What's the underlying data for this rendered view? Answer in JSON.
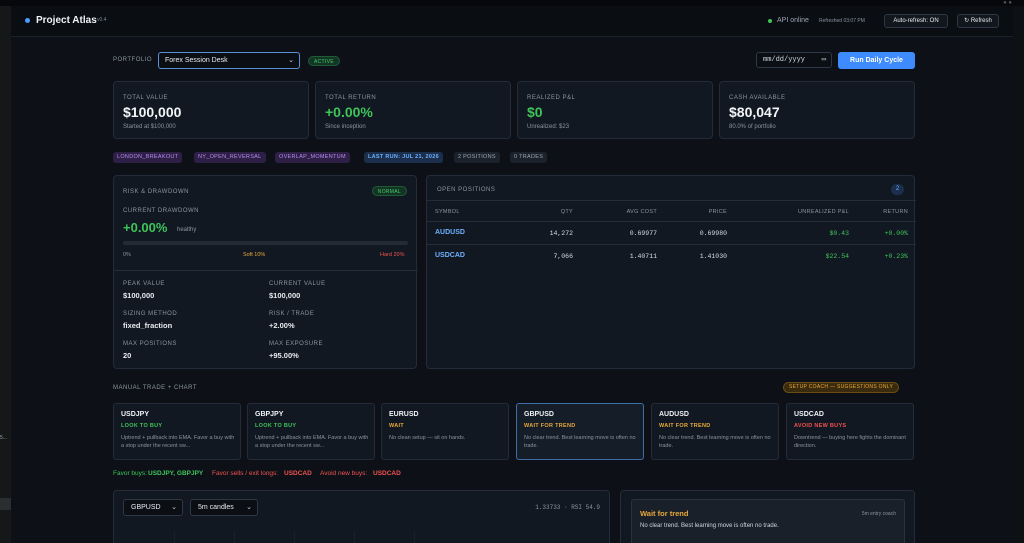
{
  "header": {
    "brand": "Project Atlas",
    "version": "v0.4",
    "api_status": "API online",
    "refreshed": "Refreshed 03:07 PM",
    "auto_refresh": "Auto-refresh: ON",
    "refresh": "↻ Refresh"
  },
  "portfolio": {
    "label": "Portfolio",
    "selected": "Forex Session Desk",
    "status": "Active",
    "date_placeholder": "mm/dd/yyyy",
    "run_button": "Run Daily Cycle"
  },
  "kpis": [
    {
      "label": "Total Value",
      "value": "$100,000",
      "sub": "Started at $100,000",
      "color": "#f2f5f8"
    },
    {
      "label": "Total Return",
      "value": "+0.00%",
      "sub": "Since inception",
      "color": "#3ec45a"
    },
    {
      "label": "Realized P&L",
      "value": "$0",
      "sub": "Unrealized: $23",
      "color": "#3ec45a"
    },
    {
      "label": "Cash Available",
      "value": "$80,047",
      "sub": "80.0% of portfolio",
      "color": "#f2f5f8"
    }
  ],
  "tags": [
    {
      "text": "LONDON_BREAKOUT",
      "kind": "purple"
    },
    {
      "text": "NY_OPEN_REVERSAL",
      "kind": "purple"
    },
    {
      "text": "OVERLAP_MOMENTUM",
      "kind": "purple"
    },
    {
      "text": "Last run: Jul 21, 2026",
      "kind": "blue"
    },
    {
      "text": "2 positions",
      "kind": "gray"
    },
    {
      "text": "0 trades",
      "kind": "gray"
    }
  ],
  "risk": {
    "title": "Risk & Drawdown",
    "status": "Normal",
    "drawdown_label": "Current Drawdown",
    "drawdown_value": "+0.00%",
    "drawdown_state": "healthy",
    "drawdown_fraction": 0.0,
    "mark_zero": "0%",
    "mark_soft": "Soft 10%",
    "mark_hard": "Hard 20%",
    "stats": [
      {
        "label": "Peak Value",
        "value": "$100,000"
      },
      {
        "label": "Current Value",
        "value": "$100,000"
      },
      {
        "label": "Sizing Method",
        "value": "fixed_fraction"
      },
      {
        "label": "Risk / Trade",
        "value": "+2.00%"
      },
      {
        "label": "Max Positions",
        "value": "20"
      },
      {
        "label": "Max Exposure",
        "value": "+95.00%"
      }
    ]
  },
  "positions": {
    "title": "Open Positions",
    "count": "2",
    "columns": [
      "Symbol",
      "Qty",
      "Avg Cost",
      "Price",
      "Unrealized P&L",
      "Return"
    ],
    "rows": [
      {
        "symbol": "AUDUSD",
        "qty": "14,272",
        "avg_cost": "0.69977",
        "price": "0.69980",
        "pnl": "$0.43",
        "ret": "+0.00%"
      },
      {
        "symbol": "USDCAD",
        "qty": "7,066",
        "avg_cost": "1.40711",
        "price": "1.41030",
        "pnl": "$22.54",
        "ret": "+0.23%"
      }
    ]
  },
  "manual": {
    "label": "Manual Trade + Chart",
    "coach_pill": "Setup coach — suggestions only",
    "pairs": [
      {
        "symbol": "USDJPY",
        "action": "Look to buy",
        "color": "#3ec45a",
        "desc": "Uptrend + pullback into EMA. Favor a buy with a stop under the recent sw..."
      },
      {
        "symbol": "GBPJPY",
        "action": "Look to buy",
        "color": "#3ec45a",
        "desc": "Uptrend + pullback into EMA. Favor a buy with a stop under the recent sw..."
      },
      {
        "symbol": "EURUSD",
        "action": "Wait",
        "color": "#e8a93a",
        "desc": "No clean setup — sit on hands."
      },
      {
        "symbol": "GBPUSD",
        "action": "Wait for trend",
        "color": "#e8a93a",
        "desc": "No clear trend. Best learning move is often no trade."
      },
      {
        "symbol": "AUDUSD",
        "action": "Wait for trend",
        "color": "#e8a93a",
        "desc": "No clear trend. Best learning move is often no trade."
      },
      {
        "symbol": "USDCAD",
        "action": "Avoid new buys",
        "color": "#f0524f",
        "desc": "Downtrend — buying here fights the dominant direction."
      }
    ],
    "favor_buys_label": "Favor buys:",
    "favor_buys": "USDJPY, GBPJPY",
    "favor_sells_label": "Favor sells / exit longs:",
    "favor_sells": "USDCAD",
    "avoid_label": "Avoid new buys:",
    "avoid": "USDCAD"
  },
  "chart": {
    "symbol": "GBPUSD",
    "timeframe": "5m candles",
    "quote": "1.33733 · RSI 54.9"
  },
  "coach": {
    "title": "Wait for trend",
    "sub": "5m entry coach",
    "desc": "No clear trend. Best learning move is often no trade."
  },
  "colors": {
    "accent": "#3d8bfd",
    "positive": "#3ec45a",
    "warning": "#e8a93a",
    "negative": "#f0524f",
    "strategy": "#b88cf0"
  }
}
